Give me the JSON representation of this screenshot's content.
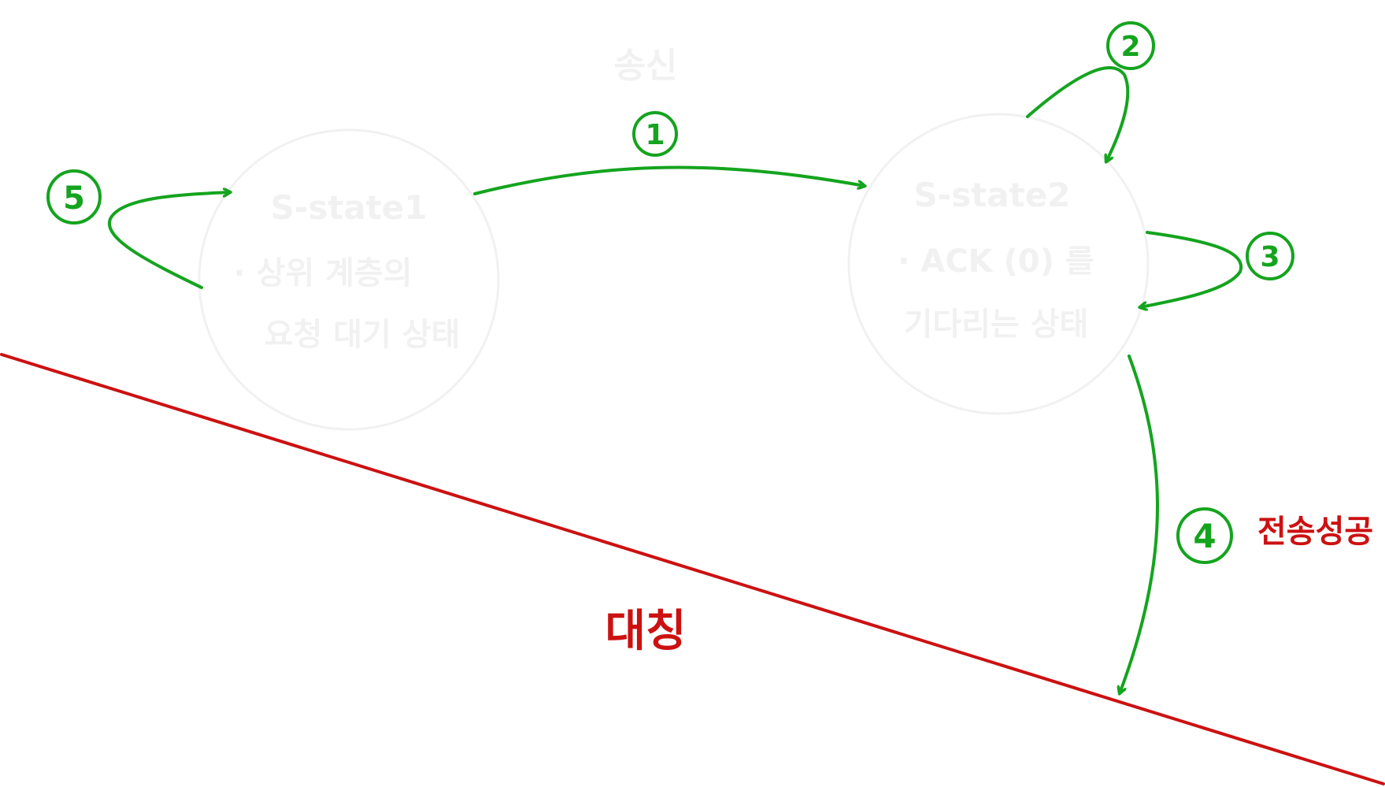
{
  "colors": {
    "transition": "#14a41e",
    "annotation": "#cc1111",
    "faint": "#f1f1f1"
  },
  "diagram": {
    "sender_title": "송신",
    "state1": {
      "name": "S-state1",
      "line1": "· 상위 계층의",
      "line2": "요청 대기 상태"
    },
    "state2": {
      "name": "S-state2",
      "line1": "· ACK (0) 를",
      "line2": "기다리는 상태"
    },
    "transitions": [
      {
        "label": "1"
      },
      {
        "label": "2"
      },
      {
        "label": "3"
      },
      {
        "label": "4"
      },
      {
        "label": "5"
      }
    ],
    "success_label": "전송성공",
    "divider_label": "대칭"
  }
}
